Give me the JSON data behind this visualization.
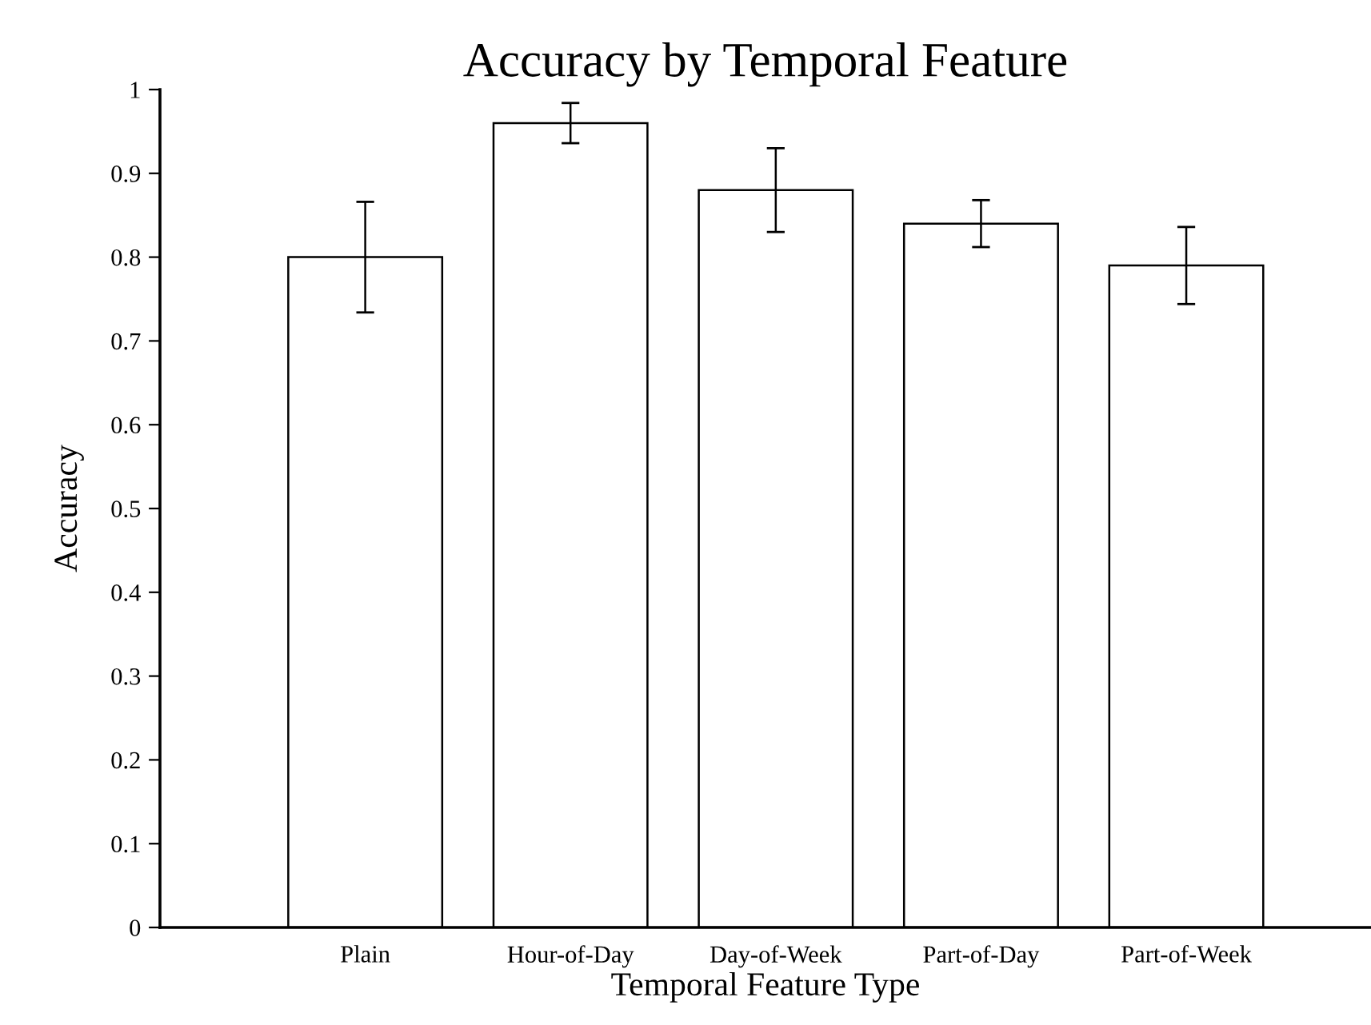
{
  "chart_data": {
    "type": "bar",
    "title": "Accuracy by Temporal Feature",
    "xlabel": "Temporal Feature Type",
    "ylabel": "Accuracy",
    "categories": [
      "Plain",
      "Hour-of-Day",
      "Day-of-Week",
      "Part-of-Day",
      "Part-of-Week"
    ],
    "values": [
      0.8,
      0.96,
      0.88,
      0.84,
      0.79
    ],
    "errors": [
      0.066,
      0.024,
      0.05,
      0.028,
      0.046
    ],
    "color": "#ffffff",
    "ylim": [
      0,
      1
    ],
    "yticks": [
      0,
      0.1,
      0.2,
      0.3,
      0.4,
      0.5,
      0.6,
      0.7,
      0.8,
      0.9,
      1
    ],
    "grid": false,
    "legend": false
  }
}
